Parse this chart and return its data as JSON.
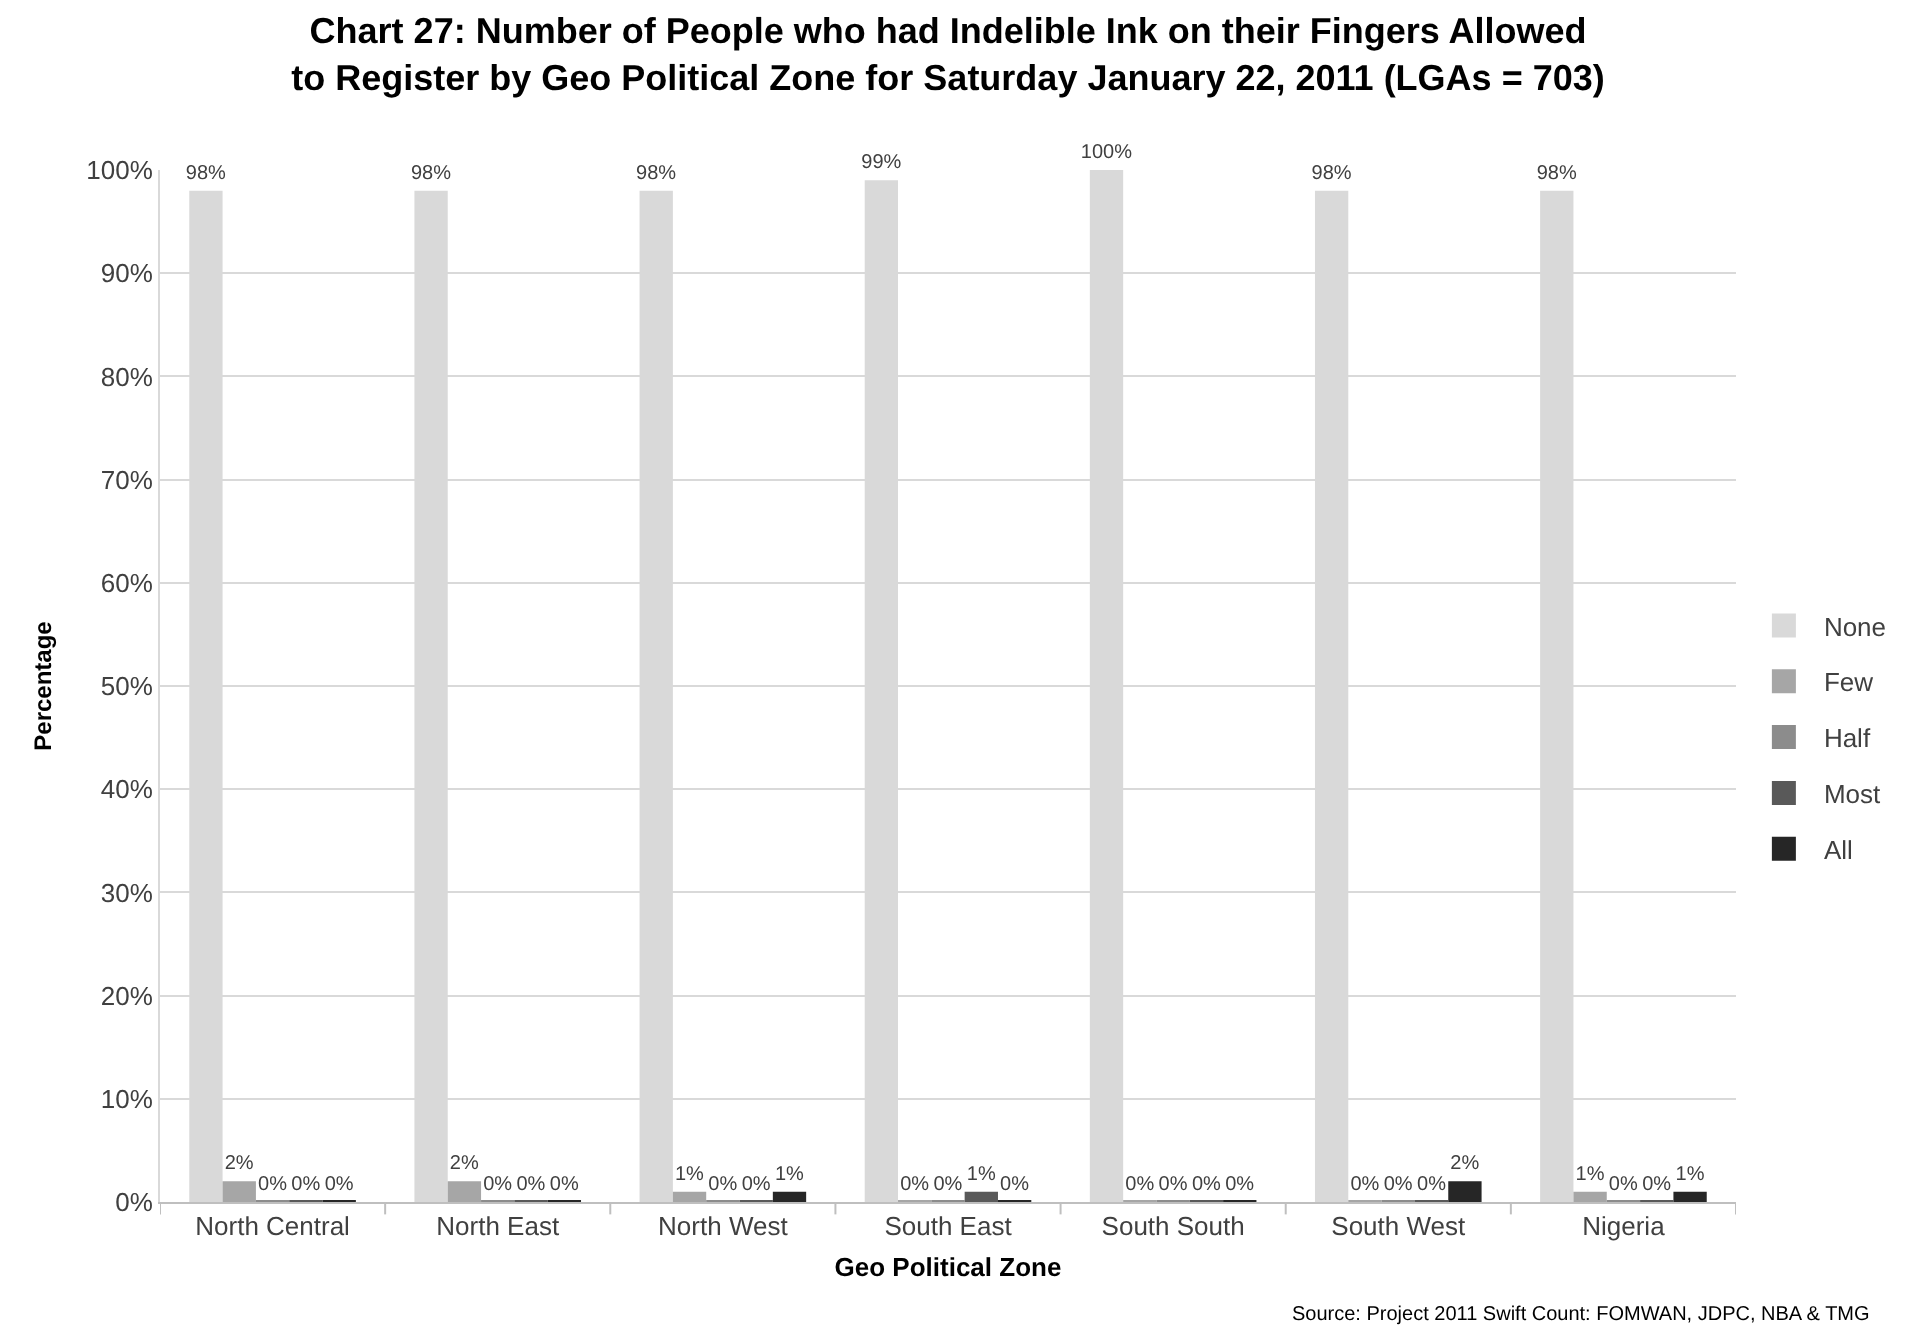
{
  "chart_data": {
    "type": "bar",
    "title": "Chart 27: Number of People who had Indelible Ink on their Fingers Allowed\nto Register by Geo Political Zone for Saturday January 22, 2011 (LGAs = 703)",
    "xlabel": "Geo Political Zone",
    "ylabel": "Percentage",
    "categories": [
      "North Central",
      "North East",
      "North West",
      "South East",
      "South South",
      "South West",
      "Nigeria"
    ],
    "series": [
      {
        "name": "None",
        "color": "#d9d9d9",
        "values": [
          98,
          98,
          98,
          99,
          100,
          98,
          98
        ],
        "value_labels": [
          "98%",
          "98%",
          "98%",
          "99%",
          "100%",
          "98%",
          "98%"
        ]
      },
      {
        "name": "Few",
        "color": "#a6a6a6",
        "values": [
          2,
          2,
          1,
          0,
          0,
          0,
          1
        ],
        "value_labels": [
          "2%",
          "2%",
          "1%",
          "0%",
          "0%",
          "0%",
          "1%"
        ]
      },
      {
        "name": "Half",
        "color": "#8c8c8c",
        "values": [
          0,
          0,
          0,
          0,
          0,
          0,
          0
        ],
        "value_labels": [
          "0%",
          "0%",
          "0%",
          "0%",
          "0%",
          "0%",
          "0%"
        ]
      },
      {
        "name": "Most",
        "color": "#595959",
        "values": [
          0,
          0,
          0,
          1,
          0,
          0,
          0
        ],
        "value_labels": [
          "0%",
          "0%",
          "0%",
          "1%",
          "0%",
          "0%",
          "0%"
        ]
      },
      {
        "name": "All",
        "color": "#262626",
        "values": [
          0,
          0,
          1,
          0,
          0,
          2,
          1
        ],
        "value_labels": [
          "0%",
          "0%",
          "1%",
          "0%",
          "0%",
          "2%",
          "1%"
        ]
      }
    ],
    "ylim": [
      0,
      100
    ],
    "yticks": [
      {
        "value": 0,
        "label": "0%"
      },
      {
        "value": 10,
        "label": "10%"
      },
      {
        "value": 20,
        "label": "20%"
      },
      {
        "value": 30,
        "label": "30%"
      },
      {
        "value": 40,
        "label": "40%"
      },
      {
        "value": 50,
        "label": "50%"
      },
      {
        "value": 60,
        "label": "60%"
      },
      {
        "value": 70,
        "label": "70%"
      },
      {
        "value": 80,
        "label": "80%"
      },
      {
        "value": 90,
        "label": "90%"
      },
      {
        "value": 100,
        "label": "100%"
      }
    ],
    "grid": "y",
    "legend": "right",
    "annotations": [
      "Source: Project 2011 Swift Count: FOMWAN, JDPC, NBA & TMG"
    ]
  }
}
